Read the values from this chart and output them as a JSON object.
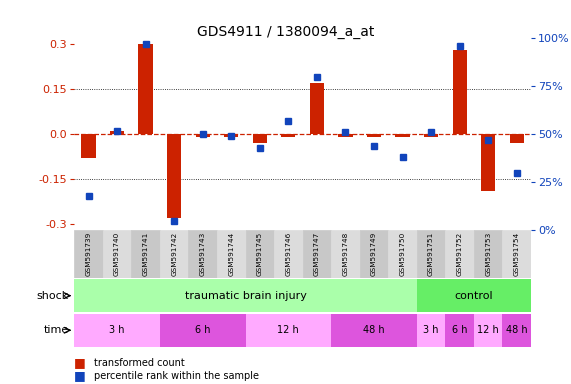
{
  "title": "GDS4911 / 1380094_a_at",
  "samples": [
    "GSM591739",
    "GSM591740",
    "GSM591741",
    "GSM591742",
    "GSM591743",
    "GSM591744",
    "GSM591745",
    "GSM591746",
    "GSM591747",
    "GSM591748",
    "GSM591749",
    "GSM591750",
    "GSM591751",
    "GSM591752",
    "GSM591753",
    "GSM591754"
  ],
  "red_values": [
    -0.08,
    0.01,
    0.3,
    -0.28,
    -0.01,
    -0.01,
    -0.03,
    -0.01,
    0.17,
    -0.01,
    -0.01,
    -0.01,
    -0.01,
    0.28,
    -0.19,
    -0.03
  ],
  "blue_values": [
    18,
    52,
    97,
    5,
    50,
    49,
    43,
    57,
    80,
    51,
    44,
    38,
    51,
    96,
    47,
    30
  ],
  "ylim": [
    -0.32,
    0.32
  ],
  "y2lim": [
    0,
    100
  ],
  "yticks": [
    -0.3,
    -0.15,
    0.0,
    0.15,
    0.3
  ],
  "y2ticks": [
    0,
    25,
    50,
    75,
    100
  ],
  "y2ticklabels": [
    "0%",
    "25%",
    "50%",
    "75%",
    "100%"
  ],
  "red_color": "#cc2200",
  "blue_color": "#1144bb",
  "bg_color": "#ffffff",
  "sample_color_a": "#c8c8c8",
  "sample_color_b": "#dcdcdc",
  "shock_tbi_color": "#aaffaa",
  "shock_ctrl_color": "#66ee66",
  "time_blocks": [
    {
      "label": "3 h",
      "xstart": 0,
      "xend": 3,
      "color": "#ffaaff"
    },
    {
      "label": "6 h",
      "xstart": 4,
      "xend": 7,
      "color": "#dd55dd"
    },
    {
      "label": "12 h",
      "xstart": 8,
      "xend": 11,
      "color": "#ffaaff"
    },
    {
      "label": "48 h",
      "xstart": 8,
      "xend": 11,
      "color": "#dd55dd"
    },
    {
      "label": "3 h",
      "xstart": 12,
      "xend": 12,
      "color": "#ffaaff"
    },
    {
      "label": "6 h",
      "xstart": 13,
      "xend": 13,
      "color": "#dd55dd"
    },
    {
      "label": "12 h",
      "xstart": 14,
      "xend": 14,
      "color": "#ffaaff"
    },
    {
      "label": "48 h",
      "xstart": 15,
      "xend": 15,
      "color": "#dd55dd"
    }
  ]
}
